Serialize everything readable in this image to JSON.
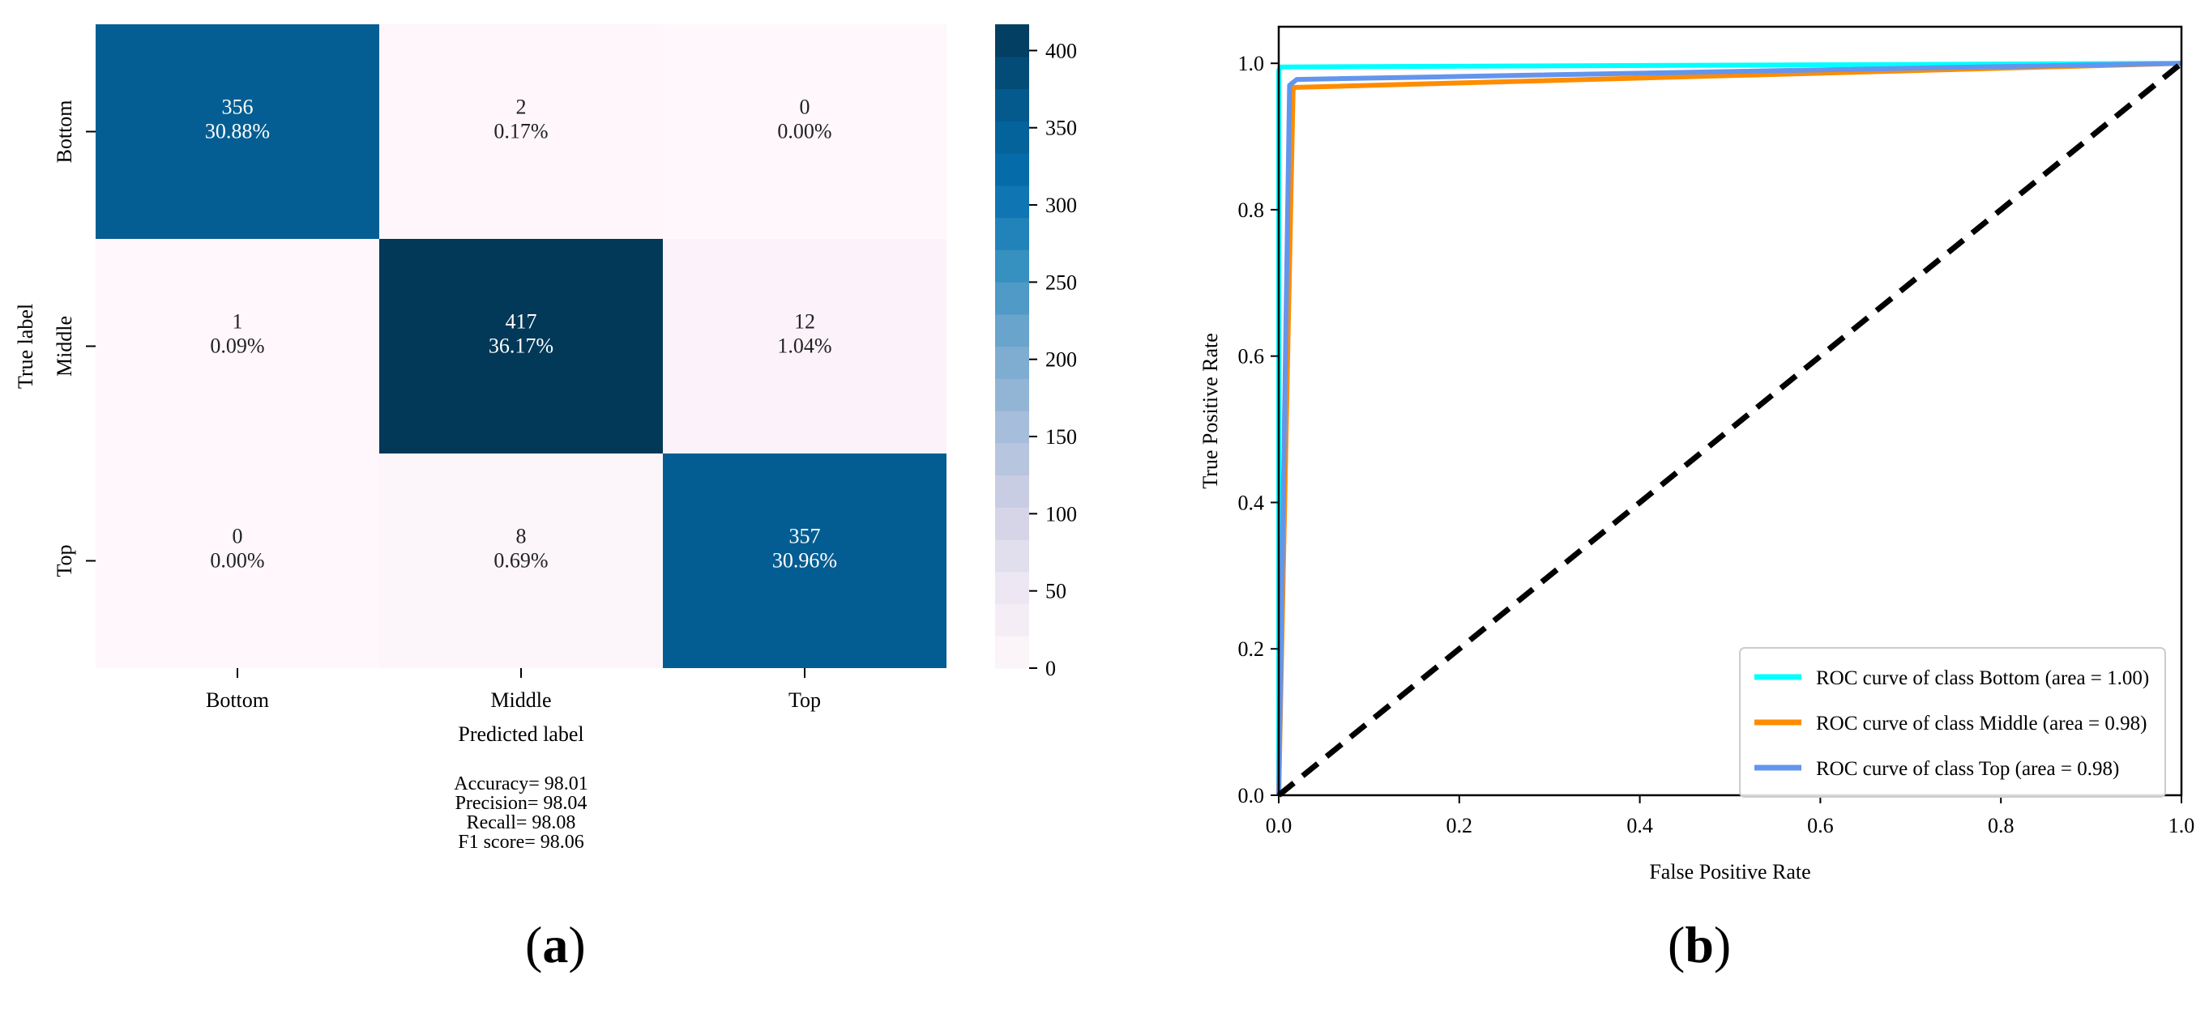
{
  "chart_data": [
    {
      "panel_label": "a",
      "type": "heatmap",
      "xlabel": "Predicted label",
      "ylabel": "True label",
      "x_categories": [
        "Bottom",
        "Middle",
        "Top"
      ],
      "y_categories": [
        "Bottom",
        "Middle",
        "Top"
      ],
      "values": [
        [
          356,
          2,
          0
        ],
        [
          1,
          417,
          12
        ],
        [
          0,
          8,
          357
        ]
      ],
      "percentages": [
        [
          "30.88%",
          "0.17%",
          "0.00%"
        ],
        [
          "0.09%",
          "36.17%",
          "1.04%"
        ],
        [
          "0.00%",
          "0.69%",
          "30.96%"
        ]
      ],
      "colorbar": {
        "range": [
          0,
          417
        ],
        "ticks": [
          0,
          50,
          100,
          150,
          200,
          250,
          300,
          350,
          400
        ],
        "colormap": "PuBu"
      },
      "metrics": [
        "Accuracy= 98.01",
        "Precision= 98.04",
        "Recall= 98.08",
        "F1 score= 98.06"
      ]
    },
    {
      "panel_label": "b",
      "type": "line",
      "xlabel": "False Positive Rate",
      "ylabel": "True Positive Rate",
      "xlim": [
        0,
        1
      ],
      "ylim": [
        0,
        1.05
      ],
      "xticks": [
        0.0,
        0.2,
        0.4,
        0.6,
        0.8,
        1.0
      ],
      "yticks": [
        0.0,
        0.2,
        0.4,
        0.6,
        0.8,
        1.0
      ],
      "legend_position": "lower-right",
      "series": [
        {
          "name": "ROC curve of class Bottom (area = 1.00)",
          "color": "#00ffff",
          "x": [
            0,
            0,
            0.002,
            1
          ],
          "y": [
            0,
            0.99,
            0.995,
            1
          ]
        },
        {
          "name": "ROC curve of class Middle (area = 0.98)",
          "color": "#ff8c00",
          "x": [
            0,
            0.016,
            1
          ],
          "y": [
            0,
            0.967,
            1
          ]
        },
        {
          "name": "ROC curve of class Top (area = 0.98)",
          "color": "#6495ed",
          "x": [
            0,
            0.012,
            0.02,
            1
          ],
          "y": [
            0,
            0.97,
            0.978,
            1
          ]
        },
        {
          "name": "",
          "color": "#000000",
          "dashed": true,
          "x": [
            0,
            1
          ],
          "y": [
            0,
            1
          ]
        }
      ]
    }
  ]
}
